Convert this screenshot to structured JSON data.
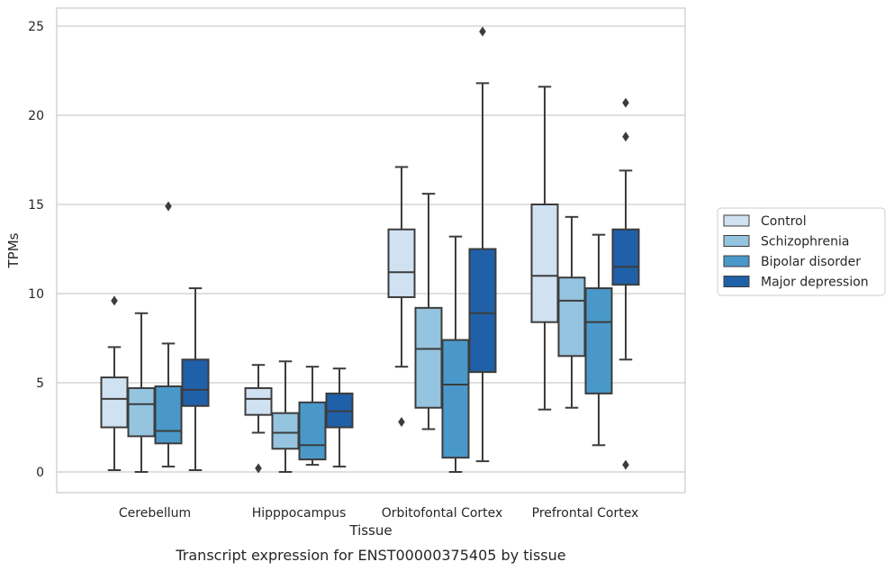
{
  "chart_data": {
    "type": "box",
    "title": "",
    "caption": "Transcript expression for ENST00000375405 by tissue",
    "xlabel": "Tissue",
    "ylabel": "TPMs",
    "ylim": [
      -1.2,
      26
    ],
    "yticks": [
      0,
      5,
      10,
      15,
      20,
      25
    ],
    "grid": "horizontal",
    "legend_position": "right",
    "categories": [
      "Cerebellum",
      "Hipppocampus",
      "Orbitofontal Cortex",
      "Prefrontal Cortex"
    ],
    "series": [
      {
        "name": "Control",
        "color": "#d0e1f2",
        "boxes": [
          {
            "min": 0.1,
            "q1": 2.5,
            "median": 4.1,
            "q3": 5.3,
            "max": 7.0,
            "outliers": [
              9.6
            ]
          },
          {
            "min": 2.2,
            "q1": 3.2,
            "median": 4.1,
            "q3": 4.7,
            "max": 6.0,
            "outliers": [
              0.2
            ]
          },
          {
            "min": 5.9,
            "q1": 9.8,
            "median": 11.2,
            "q3": 13.6,
            "max": 17.1,
            "outliers": [
              2.8
            ]
          },
          {
            "min": 3.5,
            "q1": 8.4,
            "median": 11.0,
            "q3": 15.0,
            "max": 21.6,
            "outliers": []
          }
        ]
      },
      {
        "name": "Schizophrenia",
        "color": "#94c4df",
        "boxes": [
          {
            "min": 0.0,
            "q1": 2.0,
            "median": 3.8,
            "q3": 4.7,
            "max": 8.9,
            "outliers": []
          },
          {
            "min": 0.0,
            "q1": 1.3,
            "median": 2.2,
            "q3": 3.3,
            "max": 6.2,
            "outliers": []
          },
          {
            "min": 2.4,
            "q1": 3.6,
            "median": 6.9,
            "q3": 9.2,
            "max": 15.6,
            "outliers": []
          },
          {
            "min": 3.6,
            "q1": 6.5,
            "median": 9.6,
            "q3": 10.9,
            "max": 14.3,
            "outliers": []
          }
        ]
      },
      {
        "name": "Bipolar disorder",
        "color": "#4a98c9",
        "boxes": [
          {
            "min": 0.3,
            "q1": 1.6,
            "median": 2.3,
            "q3": 4.8,
            "max": 7.2,
            "outliers": [
              14.9
            ]
          },
          {
            "min": 0.4,
            "q1": 0.7,
            "median": 1.5,
            "q3": 3.9,
            "max": 5.9,
            "outliers": []
          },
          {
            "min": 0.0,
            "q1": 0.8,
            "median": 4.9,
            "q3": 7.4,
            "max": 13.2,
            "outliers": []
          },
          {
            "min": 1.5,
            "q1": 4.4,
            "median": 8.4,
            "q3": 10.3,
            "max": 13.3,
            "outliers": []
          }
        ]
      },
      {
        "name": "Major depression",
        "color": "#2060a8",
        "boxes": [
          {
            "min": 0.1,
            "q1": 3.7,
            "median": 4.6,
            "q3": 6.3,
            "max": 10.3,
            "outliers": []
          },
          {
            "min": 0.3,
            "q1": 2.5,
            "median": 3.4,
            "q3": 4.4,
            "max": 5.8,
            "outliers": []
          },
          {
            "min": 0.6,
            "q1": 5.6,
            "median": 8.9,
            "q3": 12.5,
            "max": 21.8,
            "outliers": [
              24.7
            ]
          },
          {
            "min": 6.3,
            "q1": 10.5,
            "median": 11.5,
            "q3": 13.6,
            "max": 16.9,
            "outliers": [
              18.8,
              20.7,
              0.4
            ]
          }
        ]
      }
    ]
  }
}
